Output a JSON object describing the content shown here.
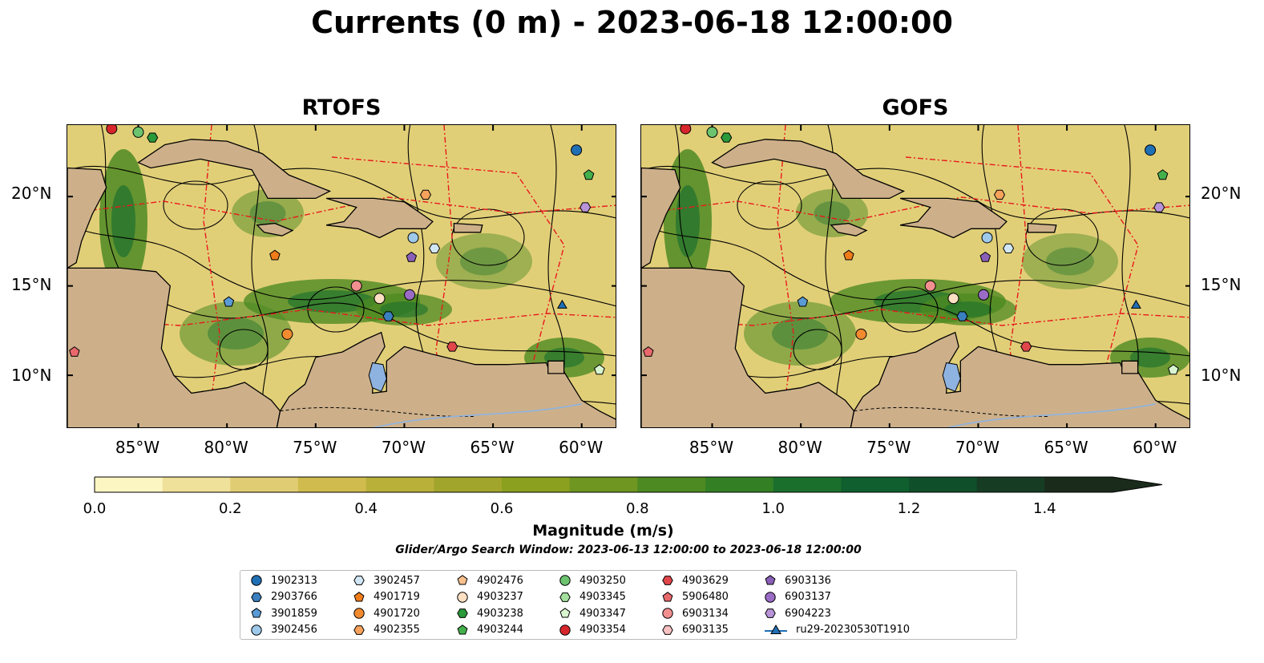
{
  "title": "Currents (0 m) - 2023-06-18 12:00:00",
  "panels": [
    {
      "title": "RTOFS"
    },
    {
      "title": "GOFS"
    }
  ],
  "lat_labels": [
    "20°N",
    "15°N",
    "10°N"
  ],
  "lon_labels": [
    "85°W",
    "80°W",
    "75°W",
    "70°W",
    "65°W",
    "60°W"
  ],
  "map_extent": {
    "lon_min": -89,
    "lon_max": -58,
    "lat_min": 7,
    "lat_max": 24
  },
  "colorbar": {
    "label": "Magnitude (m/s)",
    "ticks": [
      "0.0",
      "0.2",
      "0.4",
      "0.6",
      "0.8",
      "1.0",
      "1.2",
      "1.4"
    ],
    "min": 0,
    "max": 1.5,
    "extend": "max",
    "colors": [
      "#fcf6c3",
      "#efe09a",
      "#e0cc72",
      "#d0bb4e",
      "#b9b03a",
      "#a2a52c",
      "#8aa01e",
      "#6e9620",
      "#4d8a22",
      "#338024",
      "#1b6f2d",
      "#0f5f2f",
      "#0f4f2a",
      "#163c24",
      "#1a2b1b"
    ]
  },
  "search_window": "Glider/Argo Search Window: 2023-06-13 12:00:00 to 2023-06-18 12:00:00",
  "legend": [
    {
      "label": "1902313",
      "marker": "circle",
      "color": "#1f6fb4"
    },
    {
      "label": "2903766",
      "marker": "hexagon",
      "color": "#3a7fbf"
    },
    {
      "label": "3901859",
      "marker": "pentagon",
      "color": "#5a9bd5"
    },
    {
      "label": "3902456",
      "marker": "circle",
      "color": "#9ec9ea"
    },
    {
      "label": "3902457",
      "marker": "hexagon",
      "color": "#d2e7f6"
    },
    {
      "label": "4901719",
      "marker": "pentagon",
      "color": "#f07c1a"
    },
    {
      "label": "4901720",
      "marker": "circle",
      "color": "#f28b30"
    },
    {
      "label": "4902355",
      "marker": "hexagon",
      "color": "#f7a35c"
    },
    {
      "label": "4902476",
      "marker": "pentagon",
      "color": "#f9c08e"
    },
    {
      "label": "4903237",
      "marker": "circle",
      "color": "#fde0c2"
    },
    {
      "label": "4903238",
      "marker": "hexagon",
      "color": "#2a9a3a"
    },
    {
      "label": "4903244",
      "marker": "pentagon",
      "color": "#44b04c"
    },
    {
      "label": "4903250",
      "marker": "circle",
      "color": "#6cc46e"
    },
    {
      "label": "4903345",
      "marker": "hexagon",
      "color": "#a3e09c"
    },
    {
      "label": "4903347",
      "marker": "pentagon",
      "color": "#d8f5cf"
    },
    {
      "label": "4903354",
      "marker": "circle",
      "color": "#d6262b"
    },
    {
      "label": "4903629",
      "marker": "hexagon",
      "color": "#e0464a"
    },
    {
      "label": "5906480",
      "marker": "pentagon",
      "color": "#e8686b"
    },
    {
      "label": "6903134",
      "marker": "circle",
      "color": "#f28f8f"
    },
    {
      "label": "6903135",
      "marker": "hexagon",
      "color": "#f8c2c2"
    },
    {
      "label": "6903136",
      "marker": "pentagon",
      "color": "#8a5fb8"
    },
    {
      "label": "6903137",
      "marker": "circle",
      "color": "#9a6cc6"
    },
    {
      "label": "6904223",
      "marker": "hexagon",
      "color": "#b893d8"
    },
    {
      "label": "ru29-20230530T1910",
      "marker": "triangle-line",
      "color": "#1f6fb4"
    }
  ],
  "platform_positions": [
    {
      "id": "1902313",
      "lon": -60.3,
      "lat": 22.6
    },
    {
      "id": "2903766",
      "lon": -70.9,
      "lat": 13.3
    },
    {
      "id": "3901859",
      "lon": -79.9,
      "lat": 14.1
    },
    {
      "id": "3902456",
      "lon": -69.5,
      "lat": 17.7
    },
    {
      "id": "3902457",
      "lon": -68.3,
      "lat": 17.1
    },
    {
      "id": "4901719",
      "lon": -77.3,
      "lat": 16.7
    },
    {
      "id": "4901720",
      "lon": -76.6,
      "lat": 12.3
    },
    {
      "id": "4902355",
      "lon": -68.8,
      "lat": 20.1
    },
    {
      "id": "4903237",
      "lon": -71.4,
      "lat": 14.3
    },
    {
      "id": "4903238",
      "lon": -84.2,
      "lat": 23.3
    },
    {
      "id": "4903244",
      "lon": -59.6,
      "lat": 21.2
    },
    {
      "id": "4903250",
      "lon": -85.0,
      "lat": 23.6
    },
    {
      "id": "4903347",
      "lon": -59.0,
      "lat": 10.3
    },
    {
      "id": "4903629",
      "lon": -67.3,
      "lat": 11.6
    },
    {
      "id": "5906480",
      "lon": -88.6,
      "lat": 11.3
    },
    {
      "id": "6903134",
      "lon": -72.7,
      "lat": 15.0
    },
    {
      "id": "6903136",
      "lon": -69.6,
      "lat": 16.6
    },
    {
      "id": "6903137",
      "lon": -69.7,
      "lat": 14.5
    },
    {
      "id": "6904223",
      "lon": -59.8,
      "lat": 19.4
    },
    {
      "id": "4903354",
      "lon": -86.5,
      "lat": 23.8
    },
    {
      "id": "ru29-20230530T1910",
      "lon": -61.1,
      "lat": 13.9
    }
  ]
}
